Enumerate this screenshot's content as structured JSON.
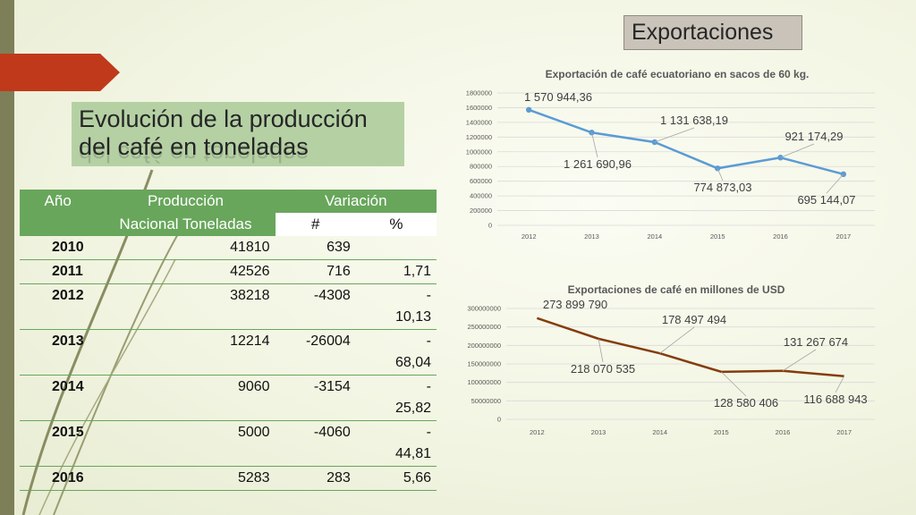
{
  "slide_title": "Evolución de la producción del café en toneladas",
  "slide_title_line1": "Evolución de la producción",
  "slide_title_line2": "del café en toneladas",
  "exports_heading": "Exportaciones",
  "table": {
    "header_row1": [
      "Año",
      "Producción",
      "Variación"
    ],
    "header_row2": [
      "Nacional Toneladas",
      "#",
      "%"
    ],
    "rows": [
      {
        "year": "2010",
        "production": "41810",
        "var_abs": "639",
        "var_pct": ""
      },
      {
        "year": "2011",
        "production": "42526",
        "var_abs": "716",
        "var_pct": "1,71"
      },
      {
        "year": "2012",
        "production": "38218",
        "var_abs": "-4308",
        "var_pct": "-10,13"
      },
      {
        "year": "2013",
        "production": "12214",
        "var_abs": "-26004",
        "var_pct": "-68,04"
      },
      {
        "year": "2014",
        "production": "9060",
        "var_abs": "-3154",
        "var_pct": "-25,82"
      },
      {
        "year": "2015",
        "production": "5000",
        "var_abs": "-4060",
        "var_pct": "-44,81"
      },
      {
        "year": "2016",
        "production": "5283",
        "var_abs": "283",
        "var_pct": "5,66"
      }
    ]
  },
  "chart_data": [
    {
      "type": "line",
      "title": "Exportación de café ecuatoriano en sacos de 60 kg.",
      "categories": [
        "2012",
        "2013",
        "2014",
        "2015",
        "2016",
        "2017"
      ],
      "series": [
        {
          "values": [
            1570944.36,
            1261690.96,
            1131638.19,
            774873.03,
            921174.29,
            695144.07
          ]
        }
      ],
      "data_labels": [
        "1 570 944,36",
        "1 261 690,96",
        "1 131 638,19",
        "774 873,03",
        "921 174,29",
        "695 144,07"
      ],
      "ylim": [
        0,
        1800000
      ],
      "yticks": [
        "0",
        "200000",
        "400000",
        "600000",
        "800000",
        "1000000",
        "1200000",
        "1400000",
        "1600000",
        "1800000"
      ],
      "grid": true,
      "color": "#5b9bd5"
    },
    {
      "type": "line",
      "title": "Exportaciones de café en millones de USD",
      "categories": [
        "2012",
        "2013",
        "2014",
        "2015",
        "2016",
        "2017"
      ],
      "series": [
        {
          "values": [
            273899790,
            218070535,
            178497494,
            128580406,
            131267674,
            116688943
          ]
        }
      ],
      "data_labels": [
        "273 899 790",
        "218 070 535",
        "178 497 494",
        "128 580 406",
        "131 267 674",
        "116 688 943"
      ],
      "ylim": [
        0,
        300000000
      ],
      "yticks": [
        "0",
        "50000000",
        "100000000",
        "150000000",
        "200000000",
        "250000000",
        "300000000"
      ],
      "grid": true,
      "color": "#843c0c"
    }
  ],
  "colors": {
    "accent_green": "#68a65b",
    "title_bg": "#b5d1a4",
    "arrow_red": "#c0391b",
    "strip": "#7d7f58"
  }
}
